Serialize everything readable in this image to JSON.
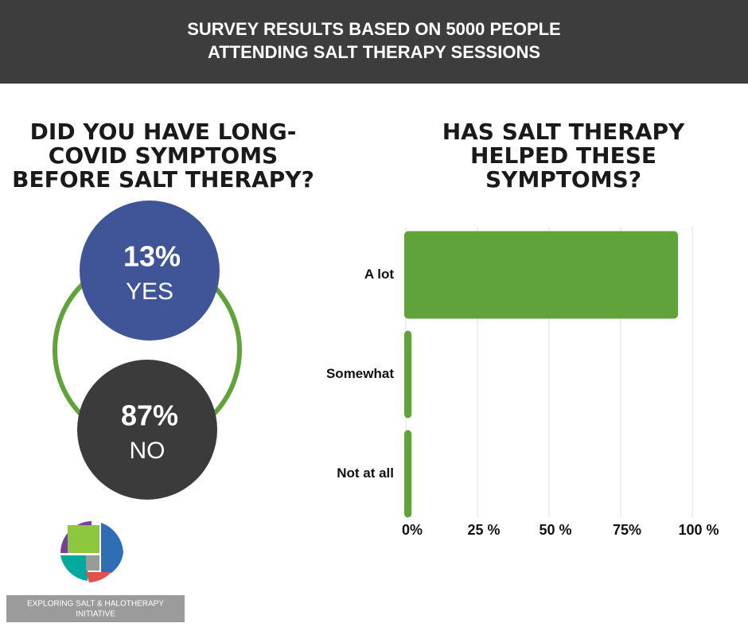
{
  "header": {
    "lines": [
      "SURVEY RESULTS BASED ON  5000 PEOPLE",
      "ATTENDING SALT THERAPY SESSIONS"
    ]
  },
  "left_panel": {
    "title": [
      "DID YOU HAVE LONG-",
      "COVID SYMPTOMS",
      "BEFORE SALT THERAPY?"
    ],
    "answers": [
      {
        "share": "13%",
        "label": "YES",
        "color": "#3f5597"
      },
      {
        "share": "87%",
        "label": "NO",
        "color": "#3b3b3c"
      }
    ],
    "ring_color": "#5fa33a"
  },
  "chart_data": {
    "type": "bar",
    "orientation": "horizontal",
    "title": [
      "HAS SALT THERAPY",
      "HELPED THESE",
      "SYMPTOMS?"
    ],
    "categories": [
      "A lot",
      "Somewhat",
      "Not at all"
    ],
    "values": [
      95,
      2,
      2
    ],
    "color": "#5fa33a",
    "xlim": [
      0,
      100
    ],
    "xticks": [
      {
        "value": 0,
        "label": "0%"
      },
      {
        "value": 25,
        "label": "25 %"
      },
      {
        "value": 50,
        "label": "50 %"
      },
      {
        "value": 75,
        "label": "75%"
      },
      {
        "value": 100,
        "label": "100 %"
      }
    ],
    "grid": true
  },
  "logo": {
    "text": [
      "EXPLORING SALT & HALOTHERAPY",
      "INITIATIVE"
    ]
  }
}
